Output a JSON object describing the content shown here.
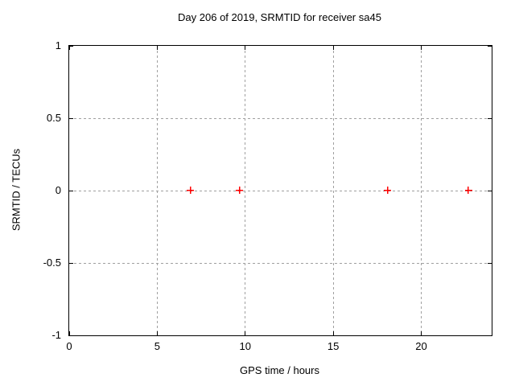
{
  "page": {
    "background": "#ffffff"
  },
  "chart_data": {
    "type": "scatter",
    "title": "Day 206 of 2019, SRMTID for receiver sa45",
    "xlabel": "GPS time / hours",
    "ylabel": "SRMTID / TECUs",
    "xlim": [
      0,
      24
    ],
    "ylim": [
      -1,
      1
    ],
    "xticks": {
      "values": [
        0,
        5,
        10,
        15,
        20
      ],
      "labels": [
        "0",
        "5",
        "10",
        "15",
        "20"
      ]
    },
    "yticks": {
      "values": [
        1,
        0.5,
        0,
        -0.5,
        -1
      ],
      "labels": [
        "1",
        "0.5",
        "0",
        "-0.5",
        "-1"
      ]
    },
    "grid": "dashed",
    "legend": "none",
    "colors": {
      "marker": "#ff0000",
      "grid": "#a0a0a0",
      "border": "#000000",
      "text": "#000000"
    },
    "series": [
      {
        "marker": "plus",
        "color": "#ff0000",
        "points": [
          {
            "x": 6.9,
            "y": 0
          },
          {
            "x": 9.7,
            "y": 0
          },
          {
            "x": 18.1,
            "y": 0
          },
          {
            "x": 22.7,
            "y": 0
          }
        ]
      }
    ]
  }
}
